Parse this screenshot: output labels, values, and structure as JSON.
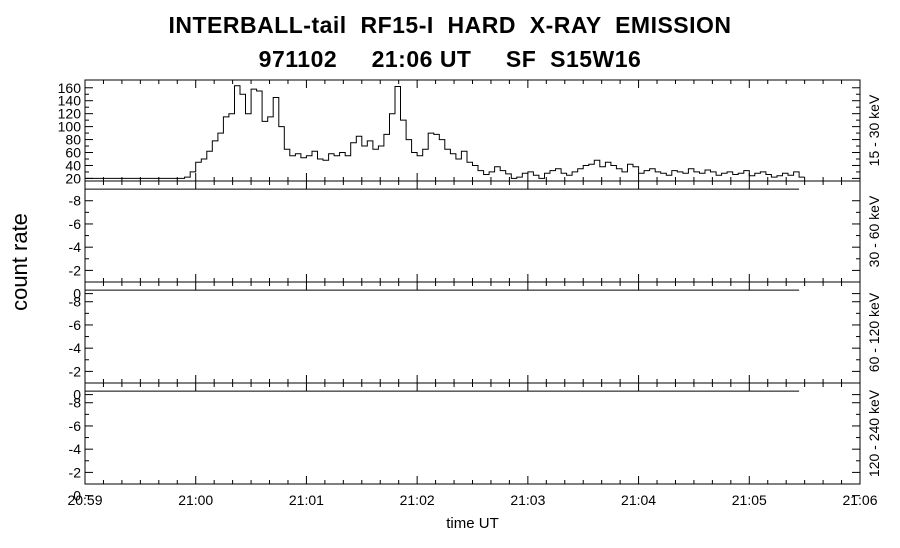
{
  "chart_data": {
    "type": "line",
    "title": "INTERBALL-tail  RF15-I  HARD  X-RAY  EMISSION",
    "subtitle": "971102     21:06 UT     SF  S15W16",
    "xlabel": "time UT",
    "ylabel": "count rate",
    "x_tick_labels": [
      "20:59",
      "21:00",
      "21:01",
      "21:02",
      "21:03",
      "21:04",
      "21:05",
      "21:06"
    ],
    "xlim_minutes": [
      0,
      7
    ],
    "grid": false,
    "panels": [
      {
        "name": "15 - 30 keV",
        "ylim": [
          16,
          172
        ],
        "yticks": [
          20,
          40,
          60,
          80,
          100,
          120,
          140,
          160
        ],
        "ytick_labels": [
          "20",
          "40",
          "60",
          "80",
          "100",
          "120",
          "140",
          "160"
        ],
        "t_minutes": [
          0.0,
          0.5,
          0.9,
          0.95,
          1.0,
          1.05,
          1.1,
          1.15,
          1.2,
          1.25,
          1.3,
          1.35,
          1.4,
          1.45,
          1.5,
          1.55,
          1.6,
          1.65,
          1.7,
          1.75,
          1.8,
          1.85,
          1.9,
          1.95,
          2.0,
          2.05,
          2.1,
          2.15,
          2.2,
          2.25,
          2.3,
          2.35,
          2.4,
          2.45,
          2.5,
          2.55,
          2.6,
          2.65,
          2.7,
          2.75,
          2.8,
          2.85,
          2.9,
          2.95,
          3.0,
          3.05,
          3.1,
          3.15,
          3.2,
          3.25,
          3.3,
          3.35,
          3.4,
          3.45,
          3.5,
          3.55,
          3.6,
          3.65,
          3.7,
          3.75,
          3.8,
          3.85,
          3.9,
          3.95,
          4.0,
          4.05,
          4.1,
          4.15,
          4.2,
          4.25,
          4.3,
          4.35,
          4.4,
          4.45,
          4.5,
          4.55,
          4.6,
          4.65,
          4.7,
          4.75,
          4.8,
          4.85,
          4.9,
          4.95,
          5.0,
          5.05,
          5.1,
          5.15,
          5.2,
          5.25,
          5.3,
          5.35,
          5.4,
          5.45,
          5.5,
          5.55,
          5.6,
          5.65,
          5.7,
          5.75,
          5.8,
          5.85,
          5.9,
          5.95,
          6.0,
          6.05,
          6.1,
          6.15,
          6.2,
          6.25,
          6.3,
          6.35,
          6.4,
          6.45
        ],
        "values": [
          20,
          20,
          22,
          30,
          45,
          50,
          62,
          78,
          90,
          115,
          120,
          163,
          150,
          120,
          158,
          155,
          108,
          115,
          145,
          100,
          65,
          55,
          58,
          52,
          55,
          62,
          50,
          48,
          58,
          55,
          60,
          55,
          75,
          85,
          70,
          78,
          65,
          70,
          88,
          120,
          162,
          110,
          80,
          60,
          55,
          65,
          90,
          88,
          80,
          65,
          58,
          50,
          62,
          45,
          40,
          32,
          26,
          30,
          38,
          32,
          27,
          20,
          22,
          28,
          30,
          25,
          20,
          28,
          32,
          35,
          28,
          25,
          30,
          35,
          40,
          42,
          48,
          38,
          45,
          40,
          35,
          30,
          42,
          38,
          28,
          32,
          35,
          30,
          28,
          25,
          32,
          30,
          28,
          35,
          30,
          28,
          33,
          30,
          25,
          28,
          30,
          26,
          28,
          32,
          24,
          28,
          30,
          26,
          22,
          24,
          28,
          25,
          30,
          22
        ]
      },
      {
        "name": "30 - 60 keV",
        "ylim": [
          -1,
          -9.7
        ],
        "yticks": [
          0,
          -2,
          -4,
          -6,
          -8
        ],
        "ytick_labels": [
          "0",
          "-2",
          "-4",
          "-6",
          "-8"
        ],
        "t_minutes": [
          0,
          6.45
        ],
        "values": [
          -9,
          -9
        ]
      },
      {
        "name": "60 - 120 keV",
        "ylim": [
          -1,
          -9.7
        ],
        "yticks": [
          0,
          -2,
          -4,
          -6,
          -8
        ],
        "ytick_labels": [
          "0",
          "-2",
          "-4",
          "-6",
          "-8"
        ],
        "t_minutes": [
          0,
          6.45
        ],
        "values": [
          -9,
          -9
        ]
      },
      {
        "name": "120 - 240 keV",
        "ylim": [
          -1,
          -9.7
        ],
        "yticks": [
          0,
          -2,
          -4,
          -6,
          -8
        ],
        "ytick_labels": [
          "0",
          "-2",
          "-4",
          "-6",
          "-8"
        ],
        "t_minutes": [
          0,
          6.45
        ],
        "values": [
          -9,
          -9
        ]
      }
    ]
  }
}
